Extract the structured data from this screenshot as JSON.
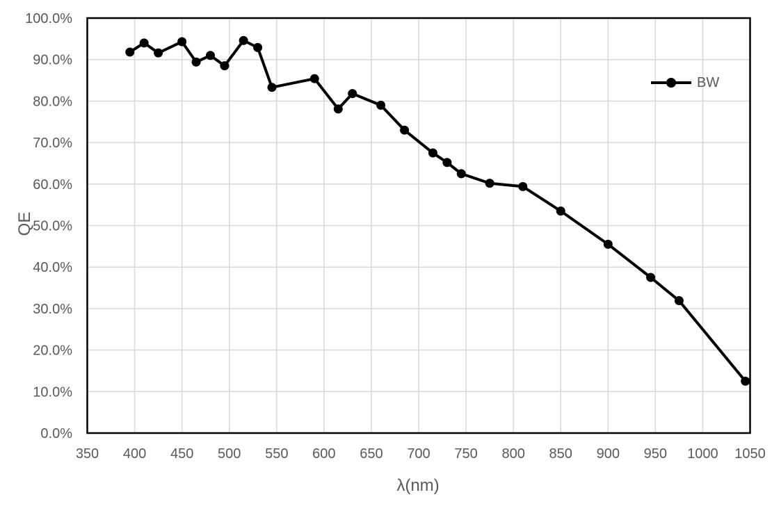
{
  "chart_data": {
    "type": "line",
    "title": "",
    "xlabel": "λ(nm)",
    "ylabel": "QE",
    "xlim": [
      350,
      1050
    ],
    "ylim": [
      0,
      100
    ],
    "x_ticks": [
      350,
      400,
      450,
      500,
      550,
      600,
      650,
      700,
      750,
      800,
      850,
      900,
      950,
      1000,
      1050
    ],
    "y_ticks": [
      0,
      10,
      20,
      30,
      40,
      50,
      60,
      70,
      80,
      90,
      100
    ],
    "y_tick_suffix": "%",
    "y_tick_decimals": 1,
    "grid": true,
    "legend_position": "inside-top-right",
    "series": [
      {
        "name": "BW",
        "color": "#000000",
        "marker": "circle",
        "x": [
          395,
          410,
          425,
          450,
          465,
          480,
          495,
          515,
          530,
          545,
          590,
          615,
          630,
          660,
          685,
          715,
          730,
          745,
          775,
          810,
          850,
          900,
          945,
          975,
          1045
        ],
        "y": [
          91.8,
          94.0,
          91.6,
          94.3,
          89.4,
          91.0,
          88.5,
          94.6,
          92.9,
          83.3,
          85.4,
          78.1,
          81.8,
          79.0,
          73.0,
          67.5,
          65.2,
          62.5,
          60.2,
          59.4,
          53.5,
          45.5,
          37.5,
          31.9,
          12.5
        ]
      }
    ]
  },
  "colors": {
    "background": "#ffffff",
    "gridline": "#d9d9d9",
    "axis_border": "#000000",
    "series_line": "#000000",
    "marker_fill": "#000000",
    "tick_label": "#595959",
    "axis_title": "#595959"
  }
}
